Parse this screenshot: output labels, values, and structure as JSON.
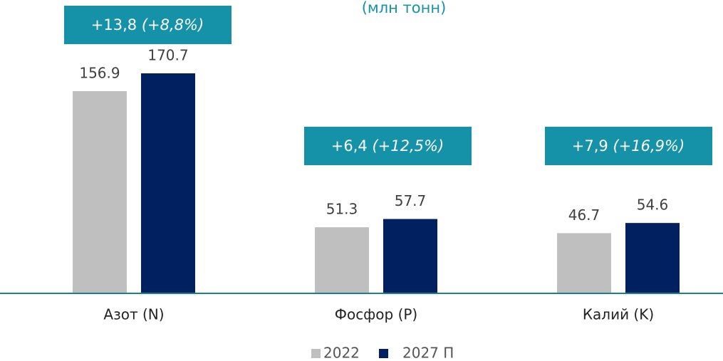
{
  "chart_data": {
    "type": "bar",
    "subtitle": "(млн тонн)",
    "categories": [
      "Азот (N)",
      "Фосфор (P)",
      "Калий (K)"
    ],
    "series": [
      {
        "name": "2022",
        "color": "#bfbfbf",
        "values": [
          156.9,
          51.3,
          46.7
        ]
      },
      {
        "name": "2027 П",
        "color": "#002060",
        "values": [
          170.7,
          57.7,
          54.6
        ]
      }
    ],
    "annotations": [
      [
        "+13,8",
        "(+8,8%)"
      ],
      [
        "+6,4",
        "(+12,5%)"
      ],
      [
        "+7,9",
        "(+16,9%)"
      ]
    ],
    "annotation_color": "#1592a8",
    "ylim": [
      0,
      227.6
    ]
  }
}
